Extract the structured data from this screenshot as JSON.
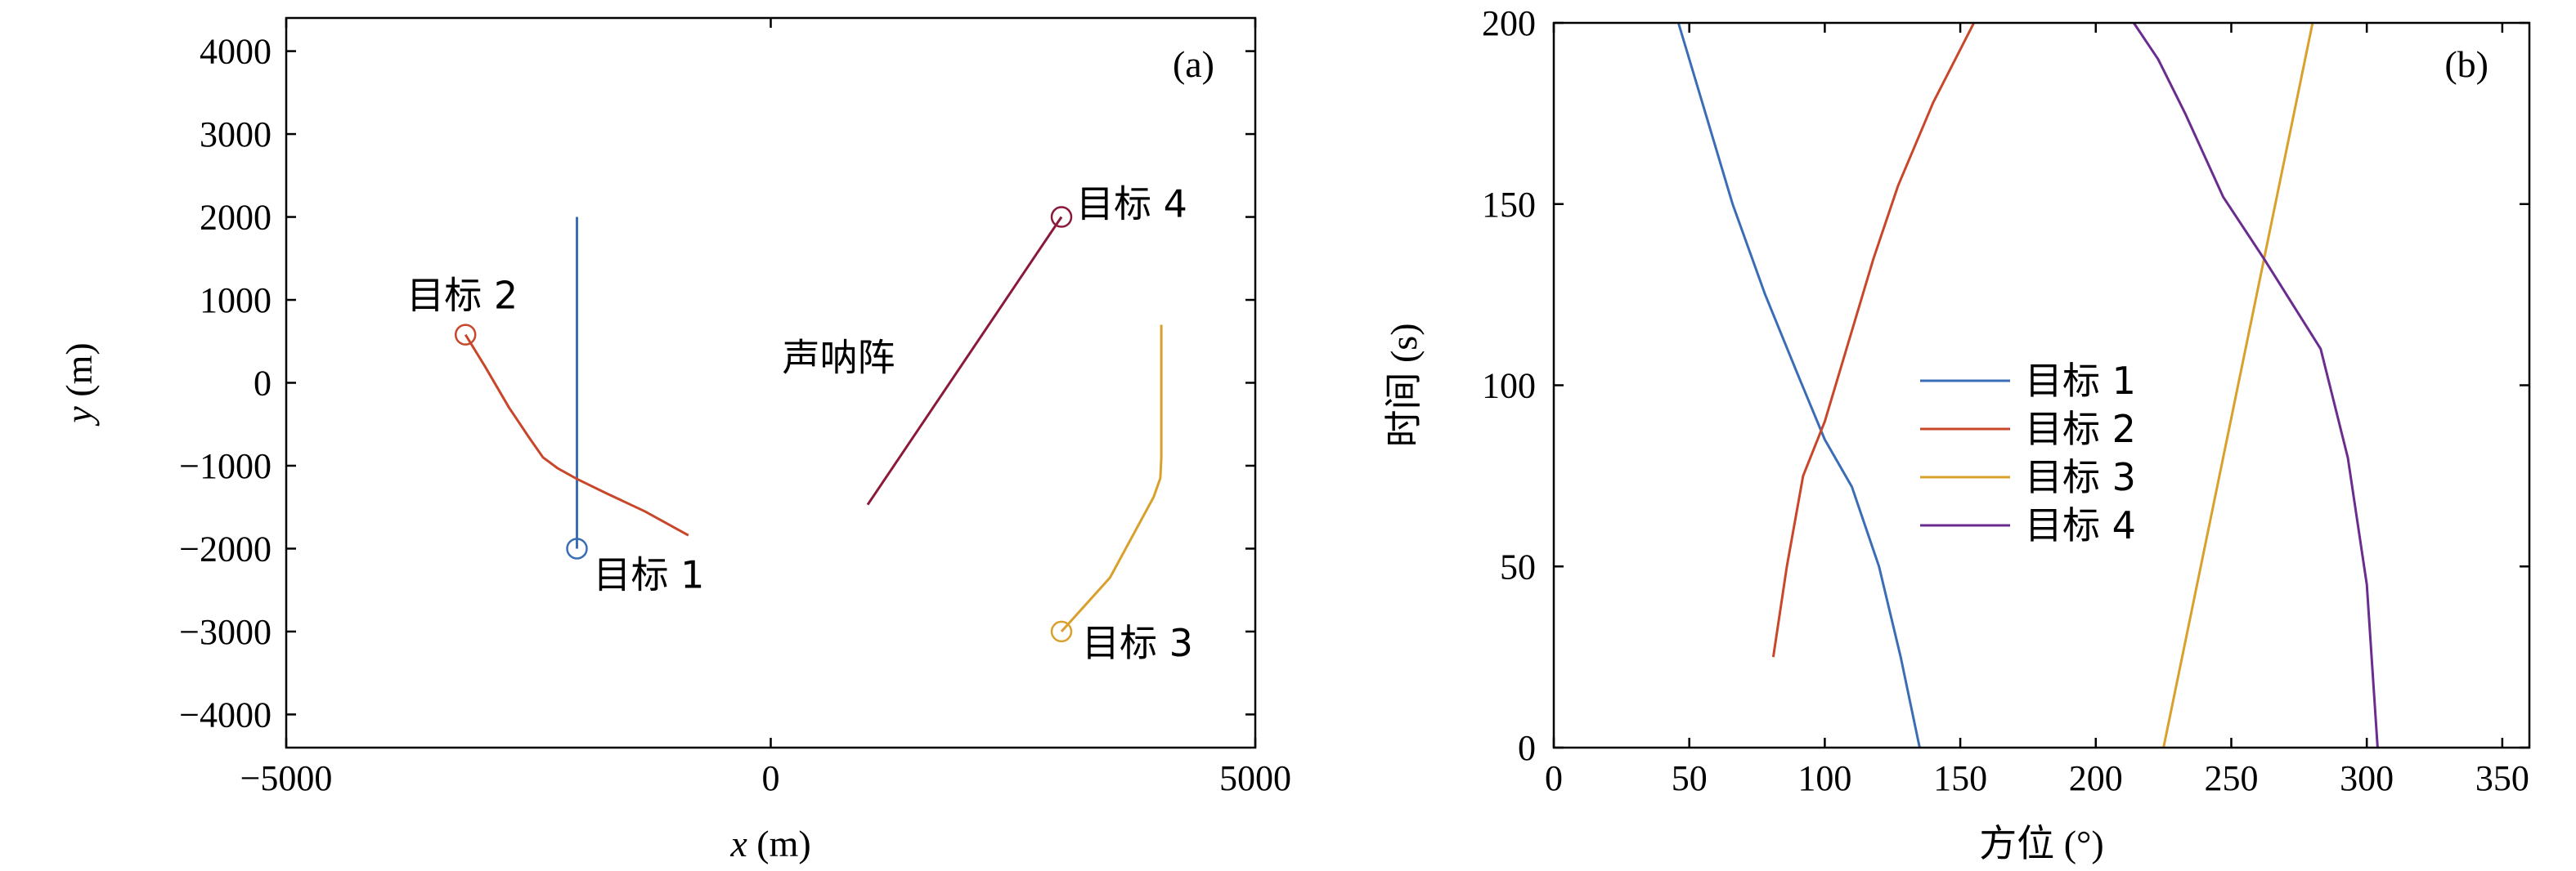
{
  "chart_data": [
    {
      "panel": "(a)",
      "type": "line",
      "xlabel_var": "x",
      "xlabel_unit": " (m)",
      "ylabel_var": "y",
      "ylabel_unit": " (m)",
      "xlim": [
        -5000,
        5000
      ],
      "ylim": [
        -4400,
        4400
      ],
      "xticks": [
        -5000,
        0,
        5000
      ],
      "xtick_labels": [
        "−5000",
        "0",
        "5000"
      ],
      "yticks": [
        -4000,
        -3000,
        -2000,
        -1000,
        0,
        1000,
        2000,
        3000,
        4000
      ],
      "ytick_labels": [
        "−4000",
        "−3000",
        "−2000",
        "−1000",
        "0",
        "1000",
        "2000",
        "3000",
        "4000"
      ],
      "annotations": [
        {
          "text": "目标 1",
          "x": -2000,
          "y": -2000
        },
        {
          "text": "目标 2",
          "x": -3100,
          "y": 600
        },
        {
          "text": "目标 3",
          "x": 3000,
          "y": -3000
        },
        {
          "text": "目标 4",
          "x": 3000,
          "y": 2000
        },
        {
          "text": "声呐阵",
          "x": 700,
          "y": 150
        }
      ],
      "series": [
        {
          "color": "#3A6DB5",
          "marker_index": 0,
          "points": [
            [
              -2000,
              -2000
            ],
            [
              -2000,
              2000
            ]
          ]
        },
        {
          "color": "#C8472A",
          "marker_index": 0,
          "points": [
            [
              -3150,
              580
            ],
            [
              -2950,
              200
            ],
            [
              -2700,
              -300
            ],
            [
              -2500,
              -650
            ],
            [
              -2350,
              -900
            ],
            [
              -2200,
              -1030
            ],
            [
              -2000,
              -1160
            ],
            [
              -1700,
              -1330
            ],
            [
              -1300,
              -1550
            ],
            [
              -850,
              -1840
            ]
          ]
        },
        {
          "color": "#D9A02C",
          "marker_index": 0,
          "points": [
            [
              3000,
              -3000
            ],
            [
              3500,
              -2350
            ],
            [
              3950,
              -1380
            ],
            [
              4020,
              -1150
            ],
            [
              4030,
              -900
            ],
            [
              4030,
              700
            ]
          ]
        },
        {
          "color": "#8B1A3A",
          "marker_index": 1,
          "points": [
            [
              1000,
              -1470
            ],
            [
              3000,
              2000
            ]
          ]
        }
      ]
    },
    {
      "panel": "(b)",
      "type": "line",
      "xlabel": "方位 (°)",
      "ylabel": "时间 (s)",
      "xlim": [
        0,
        360
      ],
      "ylim": [
        0,
        200
      ],
      "xticks": [
        0,
        50,
        100,
        150,
        200,
        250,
        300,
        350
      ],
      "yticks": [
        0,
        50,
        100,
        150,
        200
      ],
      "legend_position": "center",
      "series": [
        {
          "name": "目标 1",
          "color": "#3A6DB5",
          "points": [
            [
              135,
              0
            ],
            [
              128,
              25
            ],
            [
              120,
              50
            ],
            [
              110,
              72
            ],
            [
              100,
              85
            ],
            [
              90,
              103
            ],
            [
              78,
              125
            ],
            [
              66,
              150
            ],
            [
              56,
              175
            ],
            [
              46,
              200
            ]
          ]
        },
        {
          "name": "目标 2",
          "color": "#C8472A",
          "points": [
            [
              81,
              25
            ],
            [
              86,
              50
            ],
            [
              92,
              75
            ],
            [
              100,
              90
            ],
            [
              108,
              110
            ],
            [
              118,
              135
            ],
            [
              127,
              155
            ],
            [
              140,
              178
            ],
            [
              155,
              200
            ]
          ]
        },
        {
          "name": "目标 3",
          "color": "#D9A02C",
          "points": [
            [
              225,
              0
            ],
            [
              280,
              200
            ]
          ]
        },
        {
          "name": "目标 4",
          "color": "#6B2C8F",
          "points": [
            [
              304,
              0
            ],
            [
              300,
              45
            ],
            [
              293,
              80
            ],
            [
              283,
              110
            ],
            [
              262,
              135
            ],
            [
              247,
              152
            ],
            [
              233,
              175
            ],
            [
              223,
              190
            ],
            [
              214,
              200
            ]
          ]
        }
      ]
    }
  ]
}
